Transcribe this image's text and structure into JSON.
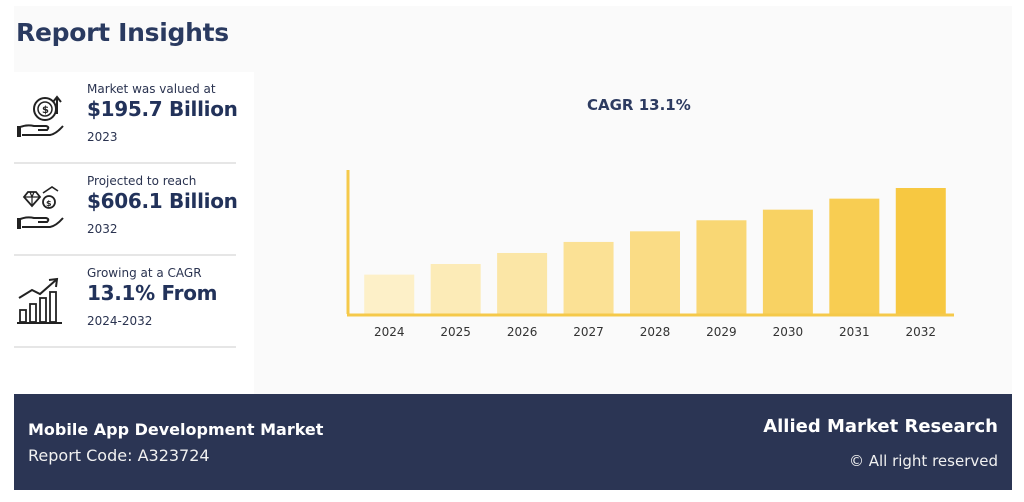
{
  "title": "Report Insights",
  "insights": [
    {
      "label": "Market was valued at",
      "value": "$195.7 Billion",
      "year": "2023",
      "icon": "money-hand-icon"
    },
    {
      "label": "Projected to reach",
      "value": "$606.1 Billion",
      "year": "2032",
      "icon": "diamond-coin-hand-icon"
    },
    {
      "label": "Growing at a CAGR",
      "value": "13.1% From",
      "year": "2024-2032",
      "icon": "growth-chart-icon"
    }
  ],
  "chart_data": {
    "type": "bar",
    "title": "CAGR 13.1%",
    "categories": [
      "2024",
      "2025",
      "2026",
      "2027",
      "2028",
      "2029",
      "2030",
      "2031",
      "2032"
    ],
    "values": [
      1,
      1.27,
      1.55,
      1.83,
      2.1,
      2.38,
      2.65,
      2.93,
      3.2
    ],
    "colors": [
      "#fdf0c8",
      "#fcebb7",
      "#fbe6a6",
      "#fbe195",
      "#fadc85",
      "#f9d774",
      "#f8d263",
      "#f8cd52",
      "#f7c841"
    ],
    "axis_color": "#f5c94a",
    "grid": false
  },
  "footer": {
    "market": "Mobile App Development Market",
    "code": "Report Code: A323724",
    "brand": "Allied Market Research",
    "rights": "© All right reserved"
  }
}
